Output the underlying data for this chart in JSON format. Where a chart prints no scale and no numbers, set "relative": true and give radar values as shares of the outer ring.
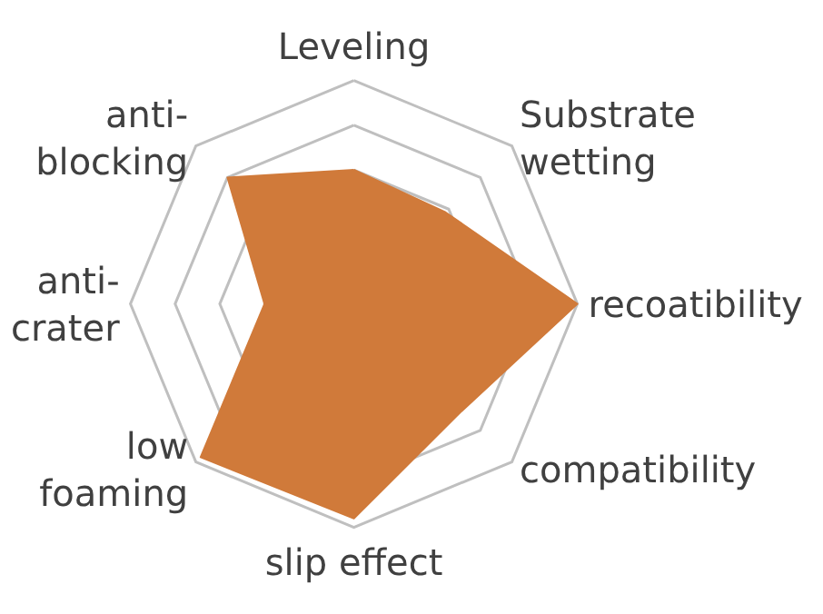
{
  "chart_data": {
    "type": "radar",
    "relative": true,
    "categories": [
      "Leveling",
      "Substrate\nwetting",
      "recoatibility",
      "compatibility",
      "slip effect",
      "low\nfoaming",
      "anti-\ncrater",
      "anti-\nblocking"
    ],
    "series": [
      {
        "color": "#d07a3a",
        "values": [
          0.6,
          0.58,
          1.0,
          0.68,
          0.96,
          0.97,
          0.4,
          0.8
        ]
      }
    ]
  }
}
